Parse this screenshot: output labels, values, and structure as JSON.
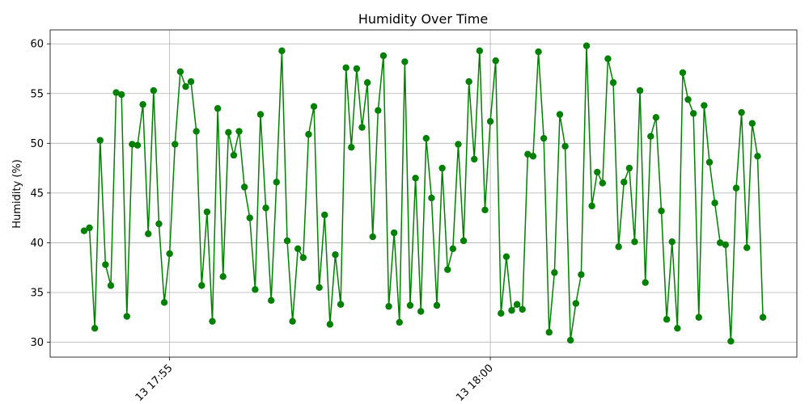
{
  "chart_data": {
    "type": "line",
    "title": "Humidity Over Time",
    "xlabel": "",
    "ylabel": "Humidity (%)",
    "x_date": "13",
    "x_start_time": "17:53:40",
    "x_step_seconds": 5,
    "xticks": [
      "13 17:55",
      "13 18:00"
    ],
    "yticks": [
      30,
      35,
      40,
      45,
      50,
      55,
      60
    ],
    "ylim": [
      28.5,
      61.4
    ],
    "grid": true,
    "color": "#008000",
    "marker": "circle",
    "series": [
      {
        "values": [
          41.2,
          41.5,
          31.4,
          50.3,
          37.8,
          35.7,
          55.1,
          54.9,
          32.6,
          49.9,
          49.8,
          53.9,
          40.9,
          55.3,
          41.9,
          34.0,
          38.9,
          49.9,
          57.2,
          55.7,
          56.2,
          51.2,
          35.7,
          43.1,
          32.1,
          53.5,
          36.6,
          51.1,
          48.8,
          51.2,
          45.6,
          42.5,
          35.3,
          52.9,
          43.5,
          34.2,
          46.1,
          59.3,
          40.2,
          32.1,
          39.4,
          38.5,
          50.9,
          53.7,
          35.5,
          42.8,
          31.8,
          38.8,
          33.8,
          57.6,
          49.6,
          57.5,
          51.6,
          56.1,
          40.6,
          53.3,
          58.8,
          33.6,
          41.0,
          32.0,
          58.2,
          33.7,
          46.5,
          33.1,
          50.5,
          44.5,
          33.7,
          47.5,
          37.3,
          39.4,
          49.9,
          40.2,
          56.2,
          48.4,
          59.3,
          43.3,
          52.2,
          58.3,
          32.9,
          38.6,
          33.2,
          33.8,
          33.3,
          48.9,
          48.7,
          59.2,
          50.5,
          31.0,
          37.0,
          52.9,
          49.7,
          30.2,
          33.9,
          36.8,
          59.8,
          43.7,
          47.1,
          46.0,
          58.5,
          56.1,
          39.6,
          46.1,
          47.5,
          40.1,
          55.3,
          36.0,
          50.7,
          52.6,
          43.2,
          32.3,
          40.1,
          31.4,
          57.1,
          54.4,
          53.0,
          32.5,
          53.8,
          48.1,
          44.0,
          40.0,
          39.8,
          30.1,
          45.5,
          53.1,
          39.5,
          52.0,
          48.7,
          32.5
        ]
      }
    ]
  }
}
